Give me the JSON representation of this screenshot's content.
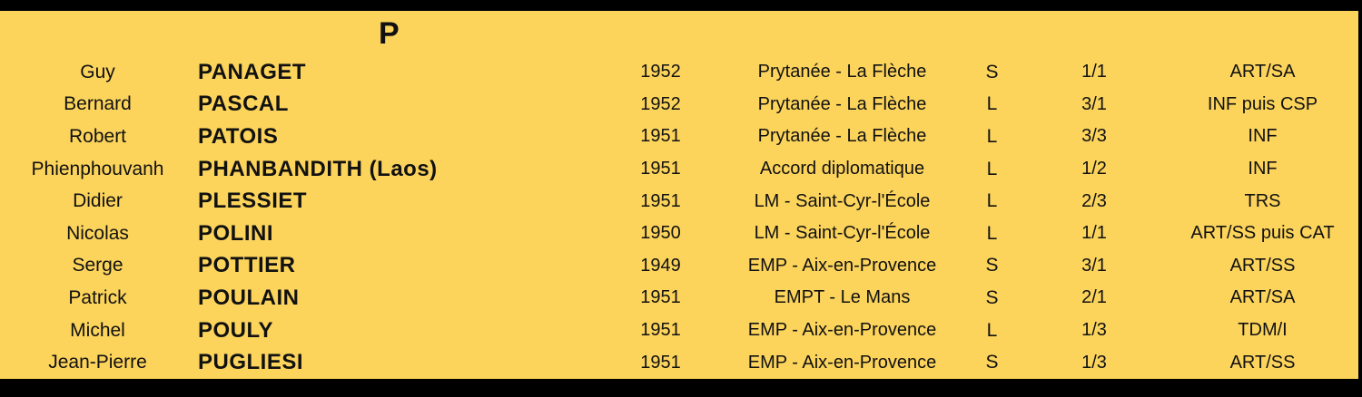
{
  "page": {
    "letter_header": "P",
    "colors": {
      "background": "#FCD45C",
      "bars": "#000000",
      "text": "#111111"
    }
  },
  "table": {
    "rows": [
      {
        "first_name": "Guy",
        "last_name": "PANAGET",
        "year": "1952",
        "school": "Prytanée - La Flèche",
        "letter": "S",
        "fraction": "1/1",
        "specialty": "ART/SA"
      },
      {
        "first_name": "Bernard",
        "last_name": "PASCAL",
        "year": "1952",
        "school": "Prytanée - La Flèche",
        "letter": "L",
        "fraction": "3/1",
        "specialty": "INF puis CSP"
      },
      {
        "first_name": "Robert",
        "last_name": "PATOIS",
        "year": "1951",
        "school": "Prytanée - La Flèche",
        "letter": "L",
        "fraction": "3/3",
        "specialty": "INF"
      },
      {
        "first_name": "Phienphouvanh",
        "last_name": "PHANBANDITH (Laos)",
        "year": "1951",
        "school": "Accord diplomatique",
        "letter": "L",
        "fraction": "1/2",
        "specialty": "INF"
      },
      {
        "first_name": "Didier",
        "last_name": "PLESSIET",
        "year": "1951",
        "school": "LM - Saint-Cyr-l'École",
        "letter": "L",
        "fraction": "2/3",
        "specialty": "TRS"
      },
      {
        "first_name": "Nicolas",
        "last_name": "POLINI",
        "year": "1950",
        "school": "LM - Saint-Cyr-l'École",
        "letter": "L",
        "fraction": "1/1",
        "specialty": "ART/SS puis CAT"
      },
      {
        "first_name": "Serge",
        "last_name": "POTTIER",
        "year": "1949",
        "school": "EMP - Aix-en-Provence",
        "letter": "S",
        "fraction": "3/1",
        "specialty": "ART/SS"
      },
      {
        "first_name": "Patrick",
        "last_name": "POULAIN",
        "year": "1951",
        "school": "EMPT - Le Mans",
        "letter": "S",
        "fraction": "2/1",
        "specialty": "ART/SA"
      },
      {
        "first_name": "Michel",
        "last_name": "POULY",
        "year": "1951",
        "school": "EMP - Aix-en-Provence",
        "letter": "L",
        "fraction": "1/3",
        "specialty": "TDM/I"
      },
      {
        "first_name": "Jean-Pierre",
        "last_name": "PUGLIESI",
        "year": "1951",
        "school": "EMP - Aix-en-Provence",
        "letter": "S",
        "fraction": "1/3",
        "specialty": "ART/SS"
      }
    ]
  }
}
